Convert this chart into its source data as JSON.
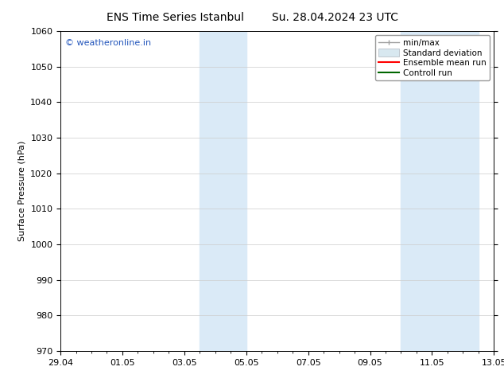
{
  "title_left": "ENS Time Series Istanbul",
  "title_right": "Su. 28.04.2024 23 UTC",
  "ylabel": "Surface Pressure (hPa)",
  "ylim": [
    970,
    1060
  ],
  "yticks": [
    970,
    980,
    990,
    1000,
    1010,
    1020,
    1030,
    1040,
    1050,
    1060
  ],
  "xtick_labels": [
    "29.04",
    "01.05",
    "03.05",
    "05.05",
    "07.05",
    "09.05",
    "11.05",
    "13.05"
  ],
  "xtick_positions": [
    0,
    2,
    4,
    6,
    8,
    10,
    12,
    14
  ],
  "xlim": [
    0,
    14
  ],
  "shaded_regions": [
    {
      "x_start": 4.5,
      "x_end": 6.0
    },
    {
      "x_start": 11.0,
      "x_end": 13.5
    }
  ],
  "shaded_color": "#daeaf7",
  "background_color": "#ffffff",
  "watermark_text": "© weatheronline.in",
  "watermark_color": "#2255bb",
  "grid_color": "#cccccc",
  "font_size": 8,
  "title_font_size": 10,
  "legend_font_size": 7.5
}
